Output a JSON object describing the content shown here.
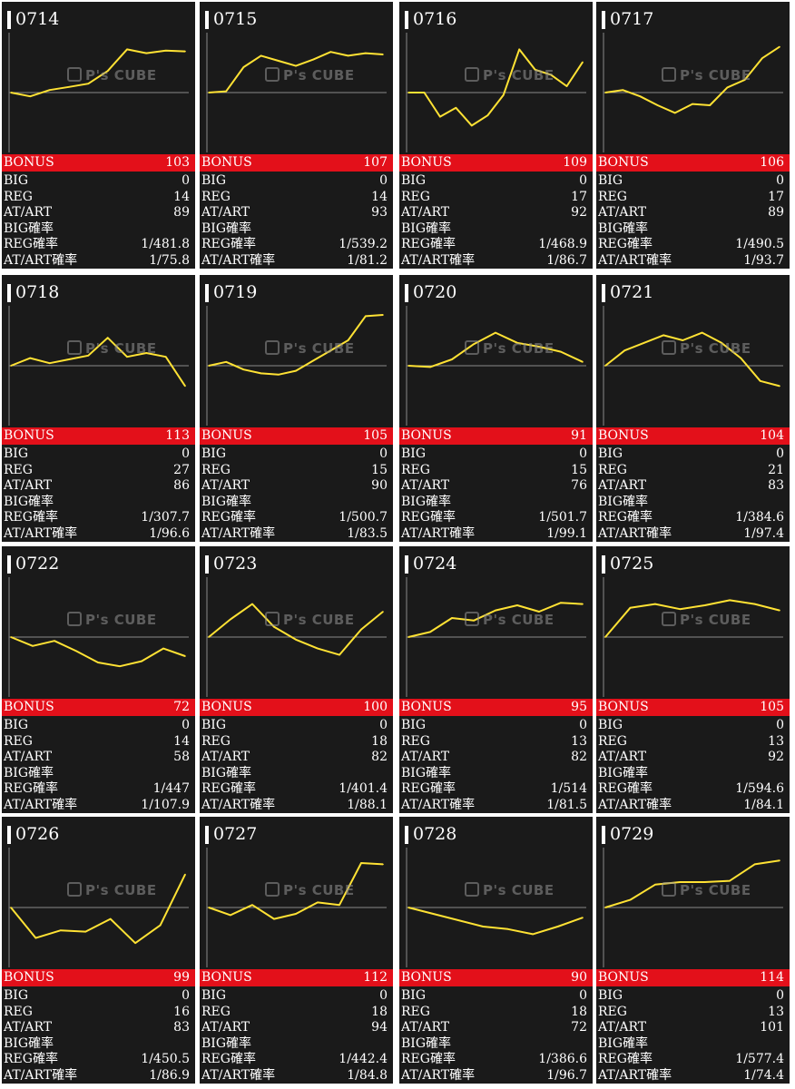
{
  "labels": {
    "bonus": "BONUS",
    "big": "BIG",
    "reg": "REG",
    "at_art": "AT/ART",
    "big_rate": "BIG確率",
    "reg_rate": "REG確率",
    "at_art_rate": "AT/ART確率"
  },
  "watermark": "P's CUBE",
  "colors": {
    "panel_bg": "#1a1a1a",
    "bonus_bar": "#e3101a",
    "series_line": "#ffe234",
    "baseline": "#8a8a8a",
    "text": "#ffffff"
  },
  "chart_data": [
    {
      "type": "line",
      "date": "0714",
      "values": [
        0.0,
        -0.15,
        0.1,
        0.22,
        0.35,
        0.85,
        1.7,
        1.55,
        1.65,
        1.62
      ],
      "bonus": "103",
      "big": "0",
      "reg": "14",
      "at_art": "89",
      "big_rate": "",
      "reg_rate": "1/481.8",
      "at_art_rate": "1/75.8"
    },
    {
      "type": "line",
      "date": "0715",
      "values": [
        0.0,
        0.05,
        1.0,
        1.45,
        1.25,
        1.05,
        1.3,
        1.6,
        1.45,
        1.55,
        1.5
      ],
      "bonus": "107",
      "big": "0",
      "reg": "14",
      "at_art": "93",
      "big_rate": "",
      "reg_rate": "1/539.2",
      "at_art_rate": "1/81.2"
    },
    {
      "type": "line",
      "date": "0716",
      "values": [
        0.0,
        0.0,
        -0.95,
        -0.6,
        -1.3,
        -0.9,
        -0.1,
        1.7,
        0.9,
        0.7,
        0.25,
        1.2
      ],
      "bonus": "109",
      "big": "0",
      "reg": "17",
      "at_art": "92",
      "big_rate": "",
      "reg_rate": "1/468.9",
      "at_art_rate": "1/86.7"
    },
    {
      "type": "line",
      "date": "0717",
      "values": [
        0.0,
        0.1,
        -0.15,
        -0.5,
        -0.8,
        -0.45,
        -0.5,
        0.2,
        0.5,
        1.35,
        1.8
      ],
      "bonus": "106",
      "big": "0",
      "reg": "17",
      "at_art": "89",
      "big_rate": "",
      "reg_rate": "1/490.5",
      "at_art_rate": "1/93.7"
    },
    {
      "type": "line",
      "date": "0718",
      "values": [
        0.0,
        0.3,
        0.1,
        0.25,
        0.4,
        1.1,
        0.35,
        0.5,
        0.35,
        -0.8
      ],
      "bonus": "113",
      "big": "0",
      "reg": "27",
      "at_art": "86",
      "big_rate": "",
      "reg_rate": "1/307.7",
      "at_art_rate": "1/96.6"
    },
    {
      "type": "line",
      "date": "0719",
      "values": [
        0.0,
        0.15,
        -0.15,
        -0.3,
        -0.35,
        -0.2,
        0.2,
        0.6,
        1.0,
        1.95,
        2.0
      ],
      "bonus": "105",
      "big": "0",
      "reg": "15",
      "at_art": "90",
      "big_rate": "",
      "reg_rate": "1/500.7",
      "at_art_rate": "1/83.5"
    },
    {
      "type": "line",
      "date": "0720",
      "values": [
        0.0,
        -0.05,
        0.25,
        0.85,
        1.3,
        0.9,
        0.75,
        0.55,
        0.15
      ],
      "bonus": "91",
      "big": "0",
      "reg": "15",
      "at_art": "76",
      "big_rate": "",
      "reg_rate": "1/501.7",
      "at_art_rate": "1/99.1"
    },
    {
      "type": "line",
      "date": "0721",
      "values": [
        0.0,
        0.6,
        0.9,
        1.2,
        1.0,
        1.3,
        0.9,
        0.3,
        -0.6,
        -0.8
      ],
      "bonus": "104",
      "big": "0",
      "reg": "21",
      "at_art": "83",
      "big_rate": "",
      "reg_rate": "1/384.6",
      "at_art_rate": "1/97.4"
    },
    {
      "type": "line",
      "date": "0722",
      "values": [
        0.0,
        -0.35,
        -0.15,
        -0.55,
        -1.0,
        -1.15,
        -0.95,
        -0.45,
        -0.75
      ],
      "bonus": "72",
      "big": "0",
      "reg": "14",
      "at_art": "58",
      "big_rate": "",
      "reg_rate": "1/447",
      "at_art_rate": "1/107.9"
    },
    {
      "type": "line",
      "date": "0723",
      "values": [
        0.0,
        0.7,
        1.3,
        0.4,
        -0.1,
        -0.45,
        -0.7,
        0.3,
        1.0
      ],
      "bonus": "100",
      "big": "0",
      "reg": "18",
      "at_art": "82",
      "big_rate": "",
      "reg_rate": "1/401.4",
      "at_art_rate": "1/88.1"
    },
    {
      "type": "line",
      "date": "0724",
      "values": [
        0.0,
        0.2,
        0.75,
        0.65,
        1.05,
        1.25,
        1.0,
        1.35,
        1.3
      ],
      "bonus": "95",
      "big": "0",
      "reg": "13",
      "at_art": "82",
      "big_rate": "",
      "reg_rate": "1/514",
      "at_art_rate": "1/81.5"
    },
    {
      "type": "line",
      "date": "0725",
      "values": [
        0.0,
        1.15,
        1.3,
        1.1,
        1.25,
        1.45,
        1.3,
        1.05
      ],
      "bonus": "105",
      "big": "0",
      "reg": "13",
      "at_art": "92",
      "big_rate": "",
      "reg_rate": "1/594.6",
      "at_art_rate": "1/84.1"
    },
    {
      "type": "line",
      "date": "0726",
      "values": [
        0.0,
        -1.2,
        -0.9,
        -0.95,
        -0.45,
        -1.4,
        -0.7,
        1.3
      ],
      "bonus": "99",
      "big": "0",
      "reg": "16",
      "at_art": "83",
      "big_rate": "",
      "reg_rate": "1/450.5",
      "at_art_rate": "1/86.9"
    },
    {
      "type": "line",
      "date": "0727",
      "values": [
        0.0,
        -0.3,
        0.1,
        -0.45,
        -0.25,
        0.2,
        0.1,
        1.75,
        1.7
      ],
      "bonus": "112",
      "big": "0",
      "reg": "18",
      "at_art": "94",
      "big_rate": "",
      "reg_rate": "1/442.4",
      "at_art_rate": "1/84.8"
    },
    {
      "type": "line",
      "date": "0728",
      "values": [
        0.0,
        -0.25,
        -0.5,
        -0.75,
        -0.85,
        -1.05,
        -0.75,
        -0.4
      ],
      "bonus": "90",
      "big": "0",
      "reg": "18",
      "at_art": "72",
      "big_rate": "",
      "reg_rate": "1/386.6",
      "at_art_rate": "1/96.7"
    },
    {
      "type": "line",
      "date": "0729",
      "values": [
        0.0,
        0.3,
        0.9,
        1.0,
        1.0,
        1.05,
        1.7,
        1.85
      ],
      "bonus": "114",
      "big": "0",
      "reg": "13",
      "at_art": "101",
      "big_rate": "",
      "reg_rate": "1/577.4",
      "at_art_rate": "1/74.4"
    }
  ]
}
